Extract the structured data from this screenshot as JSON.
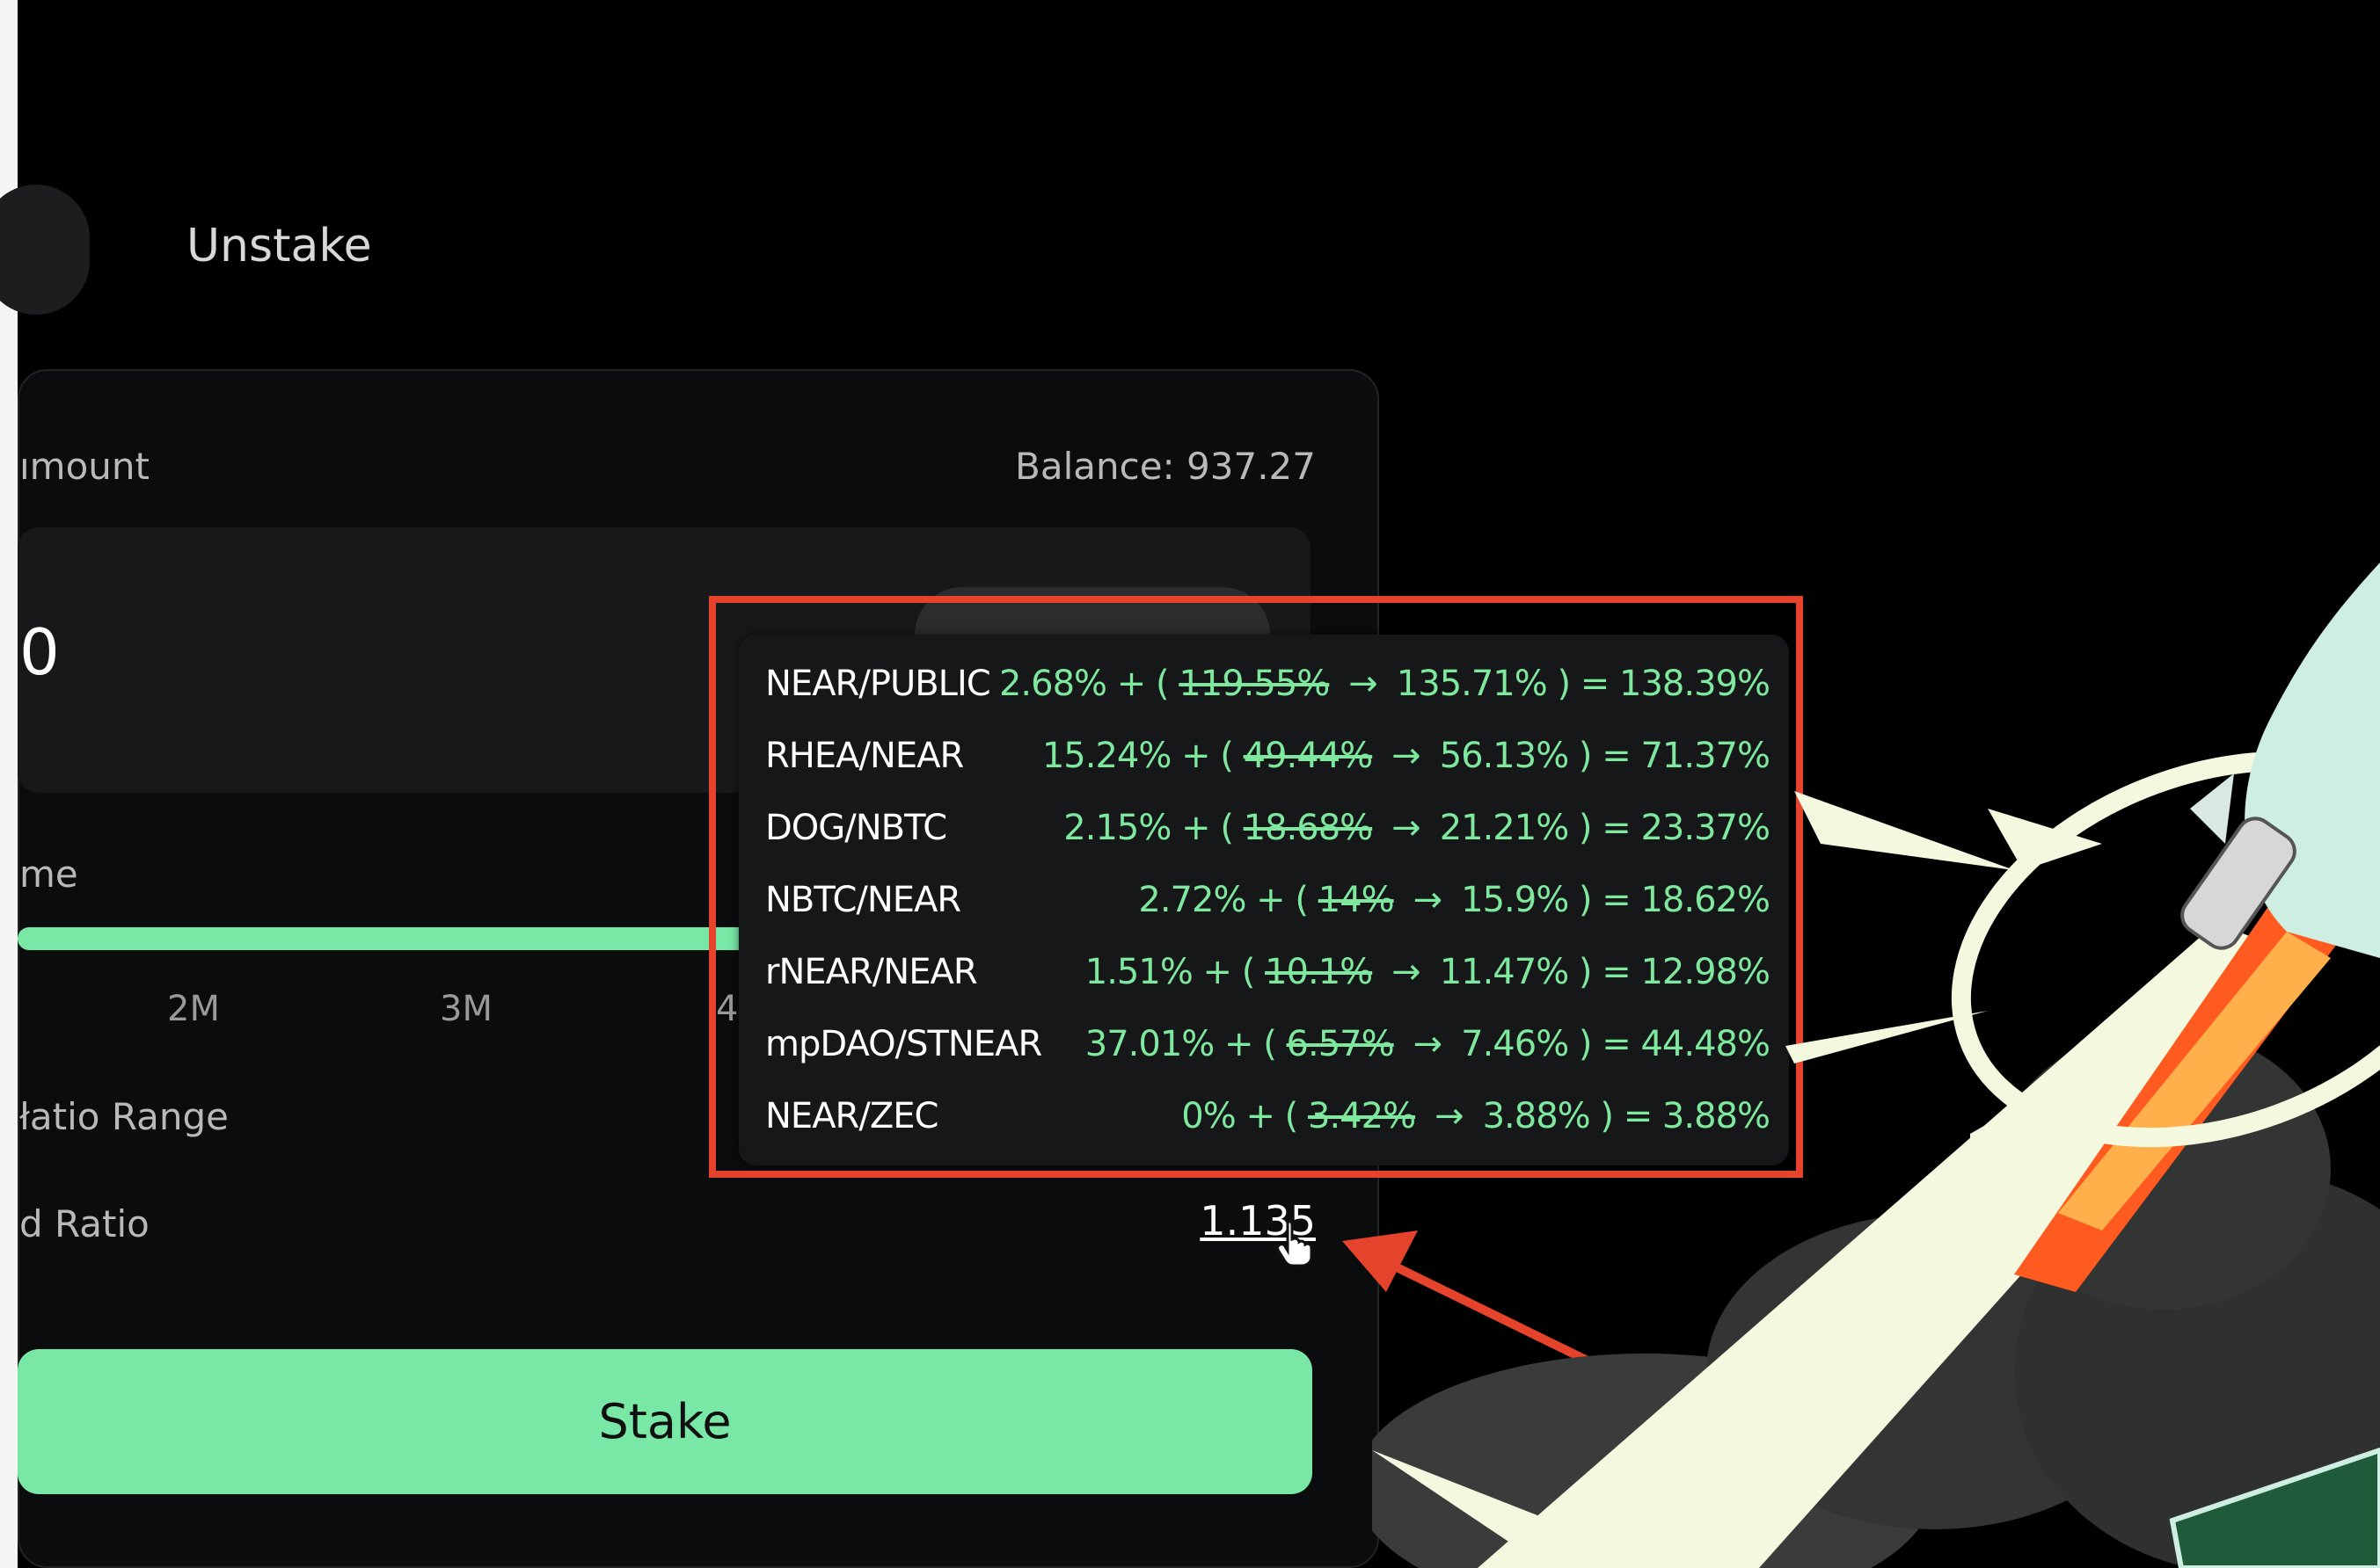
{
  "tabs": {
    "unstake_label": "Unstake"
  },
  "form": {
    "amount_label": "ımount",
    "balance": "Balance: 937.27",
    "amount_value": "0",
    "time_label": "me",
    "slider": {
      "ticks": [
        "2M",
        "3M",
        "4"
      ],
      "fill_fraction": 0.69
    },
    "ratio_range_label": "łatio Range",
    "ratio_label": "d Ratio",
    "ratio_value": "1.135",
    "stake_button": "Stake"
  },
  "tooltip": {
    "rows": [
      {
        "pair": "NEAR/PUBLIC",
        "base": "2.68% + (",
        "old": "119.55%",
        "arrow": "→",
        "new": "135.71% ) = 138.39%"
      },
      {
        "pair": "RHEA/NEAR",
        "base": "15.24% + (",
        "old": "49.44%",
        "arrow": "→",
        "new": "56.13% ) = 71.37%"
      },
      {
        "pair": "DOG/NBTC",
        "base": "2.15% + (",
        "old": "18.68%",
        "arrow": "→",
        "new": "21.21% ) = 23.37%"
      },
      {
        "pair": "NBTC/NEAR",
        "base": "2.72% + (",
        "old": "14%",
        "arrow": "→",
        "new": "15.9% ) = 18.62%"
      },
      {
        "pair": "rNEAR/NEAR",
        "base": "1.51% + (",
        "old": "10.1%",
        "arrow": "→",
        "new": "11.47% ) = 12.98%"
      },
      {
        "pair": "mpDAO/STNEAR",
        "base": "37.01% + (",
        "old": "6.57%",
        "arrow": "→",
        "new": "7.46% ) = 44.48%"
      },
      {
        "pair": "NEAR/ZEC",
        "base": "0% + (",
        "old": "3.42%",
        "arrow": "→",
        "new": "3.88% ) = 3.88%"
      }
    ]
  },
  "colors": {
    "accent_green": "#79e8a7",
    "apr_green": "#7ee89f",
    "annotation_red": "#e6432d",
    "background": "#000000"
  },
  "icons": {
    "cursor": "hand-pointer-icon",
    "illustration": "rocket-illustration"
  }
}
